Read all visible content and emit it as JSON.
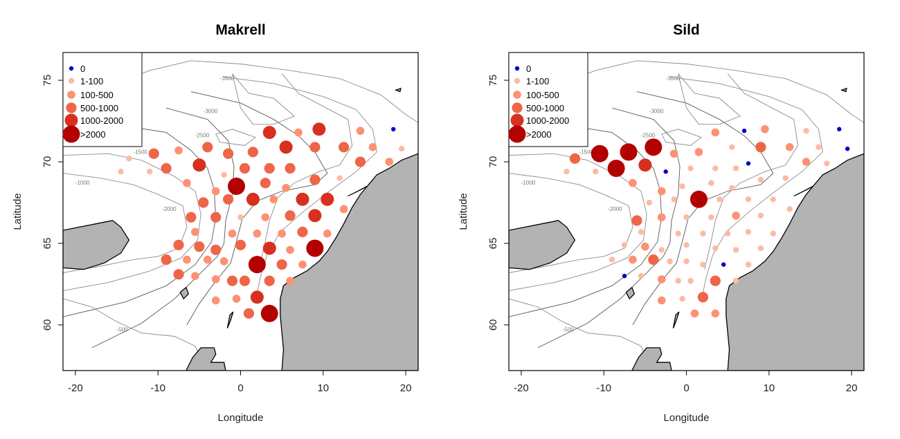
{
  "maps": [
    {
      "id": "makrell",
      "title": "Makrell",
      "xlabel": "Longitude",
      "ylabel": "Latitude",
      "legend": [
        {
          "label": "0",
          "color": "#0000cc"
        },
        {
          "label": "1-100",
          "color": "#fcbba1"
        },
        {
          "label": "100-500",
          "color": "#fc9272"
        },
        {
          "label": "500-1000",
          "color": "#ef6548"
        },
        {
          "label": "1000-2000",
          "color": "#d7301f"
        },
        {
          "label": ">2000",
          "color": "#b30000"
        }
      ],
      "points": [
        {
          "lon": -13.5,
          "lat": 70.2,
          "c": 1
        },
        {
          "lon": -14.5,
          "lat": 69.4,
          "c": 1
        },
        {
          "lon": -11.0,
          "lat": 69.4,
          "c": 1
        },
        {
          "lon": -10.5,
          "lat": 70.5,
          "c": 3
        },
        {
          "lon": -7.5,
          "lat": 70.7,
          "c": 2
        },
        {
          "lon": -9.0,
          "lat": 69.6,
          "c": 3
        },
        {
          "lon": -6.5,
          "lat": 68.7,
          "c": 2
        },
        {
          "lon": -5.0,
          "lat": 69.8,
          "c": 4
        },
        {
          "lon": -4.0,
          "lat": 70.9,
          "c": 3
        },
        {
          "lon": -1.5,
          "lat": 70.5,
          "c": 3
        },
        {
          "lon": 1.5,
          "lat": 70.6,
          "c": 3
        },
        {
          "lon": 3.5,
          "lat": 71.8,
          "c": 4
        },
        {
          "lon": 5.5,
          "lat": 70.9,
          "c": 4
        },
        {
          "lon": 7.0,
          "lat": 71.8,
          "c": 2
        },
        {
          "lon": 9.5,
          "lat": 72.0,
          "c": 4
        },
        {
          "lon": 9.0,
          "lat": 70.9,
          "c": 3
        },
        {
          "lon": 12.5,
          "lat": 70.9,
          "c": 3
        },
        {
          "lon": 14.5,
          "lat": 70.0,
          "c": 3
        },
        {
          "lon": 14.5,
          "lat": 71.9,
          "c": 2
        },
        {
          "lon": 16.0,
          "lat": 70.9,
          "c": 2
        },
        {
          "lon": 18.5,
          "lat": 72.0,
          "c": 0
        },
        {
          "lon": 19.5,
          "lat": 70.8,
          "c": 1
        },
        {
          "lon": 18.0,
          "lat": 70.0,
          "c": 2
        },
        {
          "lon": 12.0,
          "lat": 69.0,
          "c": 1
        },
        {
          "lon": 9.0,
          "lat": 68.9,
          "c": 3
        },
        {
          "lon": 6.0,
          "lat": 69.6,
          "c": 3
        },
        {
          "lon": 3.5,
          "lat": 69.6,
          "c": 3
        },
        {
          "lon": 0.5,
          "lat": 69.6,
          "c": 3
        },
        {
          "lon": -2.0,
          "lat": 69.2,
          "c": 1
        },
        {
          "lon": -0.5,
          "lat": 68.5,
          "c": 5
        },
        {
          "lon": 3.0,
          "lat": 68.7,
          "c": 3
        },
        {
          "lon": 5.5,
          "lat": 68.4,
          "c": 2
        },
        {
          "lon": 1.5,
          "lat": 67.7,
          "c": 4
        },
        {
          "lon": -1.5,
          "lat": 67.7,
          "c": 3
        },
        {
          "lon": -3.0,
          "lat": 68.2,
          "c": 2
        },
        {
          "lon": -4.5,
          "lat": 67.5,
          "c": 3
        },
        {
          "lon": 4.0,
          "lat": 67.7,
          "c": 2
        },
        {
          "lon": 7.5,
          "lat": 67.7,
          "c": 4
        },
        {
          "lon": 10.5,
          "lat": 67.7,
          "c": 4
        },
        {
          "lon": 12.5,
          "lat": 67.1,
          "c": 2
        },
        {
          "lon": -6.0,
          "lat": 66.6,
          "c": 3
        },
        {
          "lon": -3.0,
          "lat": 66.6,
          "c": 3
        },
        {
          "lon": 0.0,
          "lat": 66.6,
          "c": 1
        },
        {
          "lon": 3.0,
          "lat": 66.6,
          "c": 2
        },
        {
          "lon": 6.0,
          "lat": 66.7,
          "c": 3
        },
        {
          "lon": 9.0,
          "lat": 66.7,
          "c": 4
        },
        {
          "lon": -5.5,
          "lat": 65.7,
          "c": 2
        },
        {
          "lon": -1.0,
          "lat": 65.6,
          "c": 2
        },
        {
          "lon": 2.0,
          "lat": 65.6,
          "c": 2
        },
        {
          "lon": 5.0,
          "lat": 65.6,
          "c": 2
        },
        {
          "lon": 7.5,
          "lat": 65.7,
          "c": 3
        },
        {
          "lon": 10.5,
          "lat": 65.6,
          "c": 2
        },
        {
          "lon": -7.5,
          "lat": 64.9,
          "c": 3
        },
        {
          "lon": -5.0,
          "lat": 64.8,
          "c": 3
        },
        {
          "lon": -3.0,
          "lat": 64.6,
          "c": 3
        },
        {
          "lon": 0.0,
          "lat": 64.9,
          "c": 3
        },
        {
          "lon": 3.5,
          "lat": 64.7,
          "c": 4
        },
        {
          "lon": 6.0,
          "lat": 64.6,
          "c": 2
        },
        {
          "lon": 9.0,
          "lat": 64.7,
          "c": 5
        },
        {
          "lon": -9.0,
          "lat": 64.0,
          "c": 3
        },
        {
          "lon": -6.5,
          "lat": 64.0,
          "c": 2
        },
        {
          "lon": -4.0,
          "lat": 64.0,
          "c": 2
        },
        {
          "lon": -2.0,
          "lat": 63.9,
          "c": 2
        },
        {
          "lon": 2.0,
          "lat": 63.7,
          "c": 5
        },
        {
          "lon": 5.0,
          "lat": 63.7,
          "c": 3
        },
        {
          "lon": 7.5,
          "lat": 63.7,
          "c": 2
        },
        {
          "lon": -7.5,
          "lat": 63.1,
          "c": 3
        },
        {
          "lon": -5.5,
          "lat": 63.0,
          "c": 2
        },
        {
          "lon": -3.0,
          "lat": 62.8,
          "c": 2
        },
        {
          "lon": -1.0,
          "lat": 62.7,
          "c": 3
        },
        {
          "lon": 0.5,
          "lat": 62.7,
          "c": 3
        },
        {
          "lon": 3.5,
          "lat": 62.7,
          "c": 3
        },
        {
          "lon": 6.0,
          "lat": 62.7,
          "c": 2
        },
        {
          "lon": -3.0,
          "lat": 61.5,
          "c": 2
        },
        {
          "lon": -0.5,
          "lat": 61.6,
          "c": 2
        },
        {
          "lon": 2.0,
          "lat": 61.7,
          "c": 4
        },
        {
          "lon": 1.0,
          "lat": 60.7,
          "c": 3
        },
        {
          "lon": 3.5,
          "lat": 60.7,
          "c": 5
        }
      ]
    },
    {
      "id": "sild",
      "title": "Sild",
      "xlabel": "Longitude",
      "ylabel": "Latitude",
      "legend": [
        {
          "label": "0",
          "color": "#0000cc"
        },
        {
          "label": "1-100",
          "color": "#fcbba1"
        },
        {
          "label": "100-500",
          "color": "#fc9272"
        },
        {
          "label": "500-1000",
          "color": "#ef6548"
        },
        {
          "label": "1000-2000",
          "color": "#d7301f"
        },
        {
          "label": ">2000",
          "color": "#b30000"
        }
      ],
      "points": [
        {
          "lon": -13.5,
          "lat": 70.2,
          "c": 3
        },
        {
          "lon": -14.5,
          "lat": 69.4,
          "c": 1
        },
        {
          "lon": -11.0,
          "lat": 69.4,
          "c": 1
        },
        {
          "lon": -10.5,
          "lat": 70.5,
          "c": 5
        },
        {
          "lon": -7.0,
          "lat": 70.6,
          "c": 5
        },
        {
          "lon": -8.5,
          "lat": 69.6,
          "c": 5
        },
        {
          "lon": -6.5,
          "lat": 68.7,
          "c": 2
        },
        {
          "lon": -5.0,
          "lat": 69.8,
          "c": 4
        },
        {
          "lon": -4.0,
          "lat": 70.9,
          "c": 5
        },
        {
          "lon": -1.5,
          "lat": 70.5,
          "c": 2
        },
        {
          "lon": -2.5,
          "lat": 69.4,
          "c": 0
        },
        {
          "lon": 1.5,
          "lat": 70.6,
          "c": 2
        },
        {
          "lon": 3.5,
          "lat": 71.8,
          "c": 2
        },
        {
          "lon": 5.5,
          "lat": 70.9,
          "c": 1
        },
        {
          "lon": 7.0,
          "lat": 71.9,
          "c": 0
        },
        {
          "lon": 7.5,
          "lat": 69.9,
          "c": 0
        },
        {
          "lon": 9.5,
          "lat": 72.0,
          "c": 2
        },
        {
          "lon": 9.0,
          "lat": 70.9,
          "c": 3
        },
        {
          "lon": 12.5,
          "lat": 70.9,
          "c": 2
        },
        {
          "lon": 14.5,
          "lat": 70.0,
          "c": 2
        },
        {
          "lon": 14.5,
          "lat": 71.9,
          "c": 1
        },
        {
          "lon": 16.0,
          "lat": 70.9,
          "c": 1
        },
        {
          "lon": 18.5,
          "lat": 72.0,
          "c": 0
        },
        {
          "lon": 19.5,
          "lat": 70.8,
          "c": 0
        },
        {
          "lon": 17.0,
          "lat": 69.9,
          "c": 1
        },
        {
          "lon": 12.0,
          "lat": 69.0,
          "c": 1
        },
        {
          "lon": 9.0,
          "lat": 68.9,
          "c": 1
        },
        {
          "lon": 6.0,
          "lat": 69.6,
          "c": 1
        },
        {
          "lon": 3.5,
          "lat": 69.6,
          "c": 1
        },
        {
          "lon": 0.5,
          "lat": 69.6,
          "c": 1
        },
        {
          "lon": -0.5,
          "lat": 68.5,
          "c": 1
        },
        {
          "lon": 3.0,
          "lat": 68.7,
          "c": 1
        },
        {
          "lon": 5.5,
          "lat": 68.4,
          "c": 1
        },
        {
          "lon": 1.5,
          "lat": 67.7,
          "c": 5
        },
        {
          "lon": -1.5,
          "lat": 67.7,
          "c": 1
        },
        {
          "lon": -3.0,
          "lat": 68.2,
          "c": 2
        },
        {
          "lon": -4.5,
          "lat": 67.5,
          "c": 1
        },
        {
          "lon": 4.0,
          "lat": 67.7,
          "c": 1
        },
        {
          "lon": 7.5,
          "lat": 67.7,
          "c": 1
        },
        {
          "lon": 10.5,
          "lat": 67.7,
          "c": 1
        },
        {
          "lon": 12.5,
          "lat": 67.1,
          "c": 1
        },
        {
          "lon": -6.0,
          "lat": 66.4,
          "c": 3
        },
        {
          "lon": -3.0,
          "lat": 66.6,
          "c": 2
        },
        {
          "lon": 0.0,
          "lat": 66.6,
          "c": 1
        },
        {
          "lon": 3.0,
          "lat": 66.6,
          "c": 1
        },
        {
          "lon": 6.0,
          "lat": 66.7,
          "c": 2
        },
        {
          "lon": 9.0,
          "lat": 66.7,
          "c": 1
        },
        {
          "lon": -5.5,
          "lat": 65.7,
          "c": 1
        },
        {
          "lon": -1.0,
          "lat": 65.6,
          "c": 1
        },
        {
          "lon": 2.0,
          "lat": 65.6,
          "c": 1
        },
        {
          "lon": 5.0,
          "lat": 65.6,
          "c": 1
        },
        {
          "lon": 7.5,
          "lat": 65.7,
          "c": 1
        },
        {
          "lon": 10.5,
          "lat": 65.6,
          "c": 1
        },
        {
          "lon": -7.5,
          "lat": 64.9,
          "c": 1
        },
        {
          "lon": -5.0,
          "lat": 64.8,
          "c": 2
        },
        {
          "lon": -3.0,
          "lat": 64.6,
          "c": 1
        },
        {
          "lon": 0.0,
          "lat": 64.9,
          "c": 1
        },
        {
          "lon": 3.5,
          "lat": 64.7,
          "c": 1
        },
        {
          "lon": 6.0,
          "lat": 64.6,
          "c": 1
        },
        {
          "lon": 9.0,
          "lat": 64.7,
          "c": 1
        },
        {
          "lon": -9.0,
          "lat": 64.0,
          "c": 1
        },
        {
          "lon": -6.5,
          "lat": 64.0,
          "c": 2
        },
        {
          "lon": -4.0,
          "lat": 64.0,
          "c": 3
        },
        {
          "lon": -2.0,
          "lat": 63.9,
          "c": 1
        },
        {
          "lon": 0.0,
          "lat": 63.9,
          "c": 1
        },
        {
          "lon": 2.0,
          "lat": 63.7,
          "c": 1
        },
        {
          "lon": 4.5,
          "lat": 63.7,
          "c": 0
        },
        {
          "lon": 7.5,
          "lat": 63.7,
          "c": 1
        },
        {
          "lon": -7.5,
          "lat": 63.0,
          "c": 0
        },
        {
          "lon": -5.5,
          "lat": 63.0,
          "c": 1
        },
        {
          "lon": -3.0,
          "lat": 62.8,
          "c": 2
        },
        {
          "lon": -1.0,
          "lat": 62.7,
          "c": 1
        },
        {
          "lon": 0.5,
          "lat": 62.7,
          "c": 1
        },
        {
          "lon": 3.5,
          "lat": 62.7,
          "c": 3
        },
        {
          "lon": 6.0,
          "lat": 62.7,
          "c": 1
        },
        {
          "lon": -3.0,
          "lat": 61.5,
          "c": 2
        },
        {
          "lon": -0.5,
          "lat": 61.6,
          "c": 1
        },
        {
          "lon": 2.0,
          "lat": 61.7,
          "c": 3
        },
        {
          "lon": 1.0,
          "lat": 60.7,
          "c": 2
        },
        {
          "lon": 3.5,
          "lat": 60.7,
          "c": 2
        }
      ]
    }
  ],
  "axes": {
    "xlim": [
      -21.5,
      21.5
    ],
    "ylim": [
      57.2,
      76.7
    ],
    "xticks": [
      -20,
      -10,
      0,
      10,
      20
    ],
    "yticks": [
      60,
      65,
      70,
      75
    ]
  },
  "contour_labels": [
    "-3500",
    "-3000",
    "-2500",
    "-2000",
    "-1500",
    "-1000",
    "-500"
  ]
}
